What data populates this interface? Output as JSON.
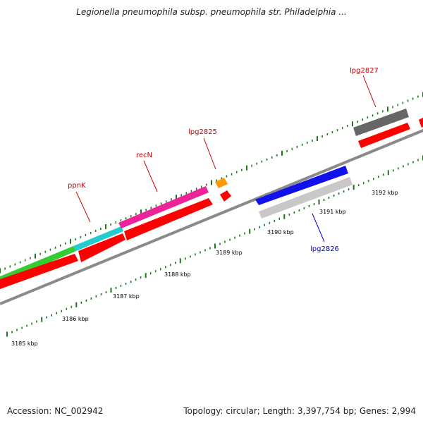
{
  "title": "Legionella pneumophila subsp. pneumophila str. Philadelphia ...",
  "footer": {
    "accession": "Accession: NC_002942",
    "summary": "Topology: circular; Length: 3,397,754 bp; Genes: 2,994"
  },
  "scale_labels": [
    {
      "text": "3185 kbp"
    },
    {
      "text": "3186 kbp"
    },
    {
      "text": "3187 kbp"
    },
    {
      "text": "3188 kbp"
    },
    {
      "text": "3189 kbp"
    },
    {
      "text": "3190 kbp"
    },
    {
      "text": "3191 kbp"
    },
    {
      "text": "3192 kbp"
    }
  ],
  "gene_labels": [
    {
      "text": "ppnK",
      "color": "#cc0000"
    },
    {
      "text": "recN",
      "color": "#cc0000"
    },
    {
      "text": "lpg2825",
      "color": "#cc0000"
    },
    {
      "text": "lpg2827",
      "color": "#cc0000"
    },
    {
      "text": "lpg2826",
      "color": "#0000cc"
    }
  ],
  "colors": {
    "backbone": "#8a8a8a",
    "tick": "#1a7a1a",
    "cds": "#ff0000",
    "ppnK": "#33cc33",
    "segment_cyan": "#22cccc",
    "recN": "#ee2299",
    "lpg2825": "#ff9900",
    "lpg2826": "#1111ee",
    "lpg2826_cds": "#c8c8c8",
    "lpg2827": "#666666"
  }
}
